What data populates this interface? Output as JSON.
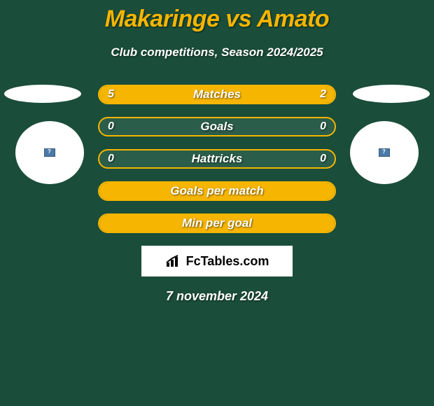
{
  "header": {
    "title": "Makaringe vs Amato",
    "subtitle": "Club competitions, Season 2024/2025"
  },
  "stats": {
    "rows": [
      {
        "label": "Matches",
        "left_value": "5",
        "right_value": "2",
        "left_fill_pct": 69,
        "right_fill_pct": 31,
        "show_values": true
      },
      {
        "label": "Goals",
        "left_value": "0",
        "right_value": "0",
        "left_fill_pct": 0,
        "right_fill_pct": 0,
        "show_values": true
      },
      {
        "label": "Hattricks",
        "left_value": "0",
        "right_value": "0",
        "left_fill_pct": 0,
        "right_fill_pct": 0,
        "show_values": true
      },
      {
        "label": "Goals per match",
        "left_value": "",
        "right_value": "",
        "left_fill_pct": 100,
        "right_fill_pct": 0,
        "show_values": false
      },
      {
        "label": "Min per goal",
        "left_value": "",
        "right_value": "",
        "left_fill_pct": 100,
        "right_fill_pct": 0,
        "show_values": false
      }
    ]
  },
  "branding": {
    "logo_text": "FcTables.com"
  },
  "footer": {
    "date": "7 november 2024"
  },
  "colors": {
    "background": "#1a4d3a",
    "accent": "#f5b500",
    "bar_bg": "#2a5d4a",
    "text": "#ffffff"
  }
}
